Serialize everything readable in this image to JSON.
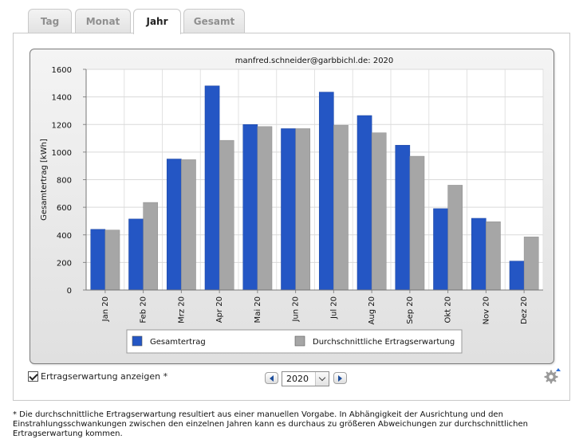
{
  "tabs": [
    {
      "label": "Tag",
      "active": false
    },
    {
      "label": "Monat",
      "active": false
    },
    {
      "label": "Jahr",
      "active": true
    },
    {
      "label": "Gesamt",
      "active": false
    }
  ],
  "controls": {
    "checkbox_label": "Ertragserwartung anzeigen *",
    "checkbox_checked": true,
    "year_value": "2020"
  },
  "footnote": "* Die durchschnittliche Ertragserwartung resultiert aus einer manuellen Vorgabe. In Abhängigkeit der Ausrichtung und den Einstrahlungsschwankungen zwischen den einzelnen Jahren kann es durchaus zu größeren Abweichungen zur durchschnittlichen Ertragserwartung kommen.",
  "chart_data": {
    "type": "bar",
    "title": "manfred.schneider@garbbichl.de: 2020",
    "xlabel": "",
    "ylabel": "Gesamtertrag [kWh]",
    "ylim": [
      0,
      1600
    ],
    "yticks": [
      0,
      200,
      400,
      600,
      800,
      1000,
      1200,
      1400,
      1600
    ],
    "grid": true,
    "legend_position": "bottom",
    "categories": [
      "Jan 20",
      "Feb 20",
      "Mrz 20",
      "Apr 20",
      "Mai 20",
      "Jun 20",
      "Jul 20",
      "Aug 20",
      "Sep 20",
      "Okt 20",
      "Nov 20",
      "Dez 20"
    ],
    "series": [
      {
        "name": "Gesamtertrag",
        "color": "#2456c4",
        "values": [
          440,
          515,
          950,
          1480,
          1200,
          1170,
          1435,
          1265,
          1050,
          590,
          520,
          210
        ]
      },
      {
        "name": "Durchschnittliche Ertragserwartung",
        "color": "#a6a6a6",
        "values": [
          435,
          635,
          945,
          1085,
          1185,
          1170,
          1195,
          1140,
          970,
          760,
          495,
          385
        ]
      }
    ]
  }
}
